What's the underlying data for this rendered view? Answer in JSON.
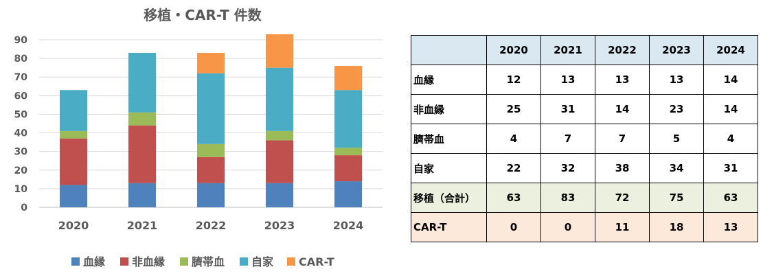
{
  "chart_data": {
    "type": "bar",
    "stacked": true,
    "title": "移植・CAR-T 件数",
    "categories": [
      "2020",
      "2021",
      "2022",
      "2023",
      "2024"
    ],
    "ylim": [
      0,
      90
    ],
    "yticks": [
      0,
      10,
      20,
      30,
      40,
      50,
      60,
      70,
      80,
      90
    ],
    "grid": true,
    "legend_position": "bottom",
    "series": [
      {
        "name": "血縁",
        "color": "#4f81bd",
        "values": [
          12,
          13,
          13,
          13,
          14
        ]
      },
      {
        "name": "非血縁",
        "color": "#c0504d",
        "values": [
          25,
          31,
          14,
          23,
          14
        ]
      },
      {
        "name": "臍帯血",
        "color": "#9bbb59",
        "values": [
          4,
          7,
          7,
          5,
          4
        ]
      },
      {
        "name": "自家",
        "color": "#4bacc6",
        "values": [
          22,
          32,
          38,
          34,
          31
        ]
      },
      {
        "name": "CAR-T",
        "color": "#f79646",
        "values": [
          0,
          0,
          11,
          18,
          13
        ]
      }
    ]
  },
  "table": {
    "headers": [
      "",
      "2020",
      "2021",
      "2022",
      "2023",
      "2024"
    ],
    "rows": [
      {
        "label": "血縁",
        "values": [
          "12",
          "13",
          "13",
          "13",
          "14"
        ]
      },
      {
        "label": "非血縁",
        "values": [
          "25",
          "31",
          "14",
          "23",
          "14"
        ]
      },
      {
        "label": "臍帯血",
        "values": [
          "4",
          "7",
          "7",
          "5",
          "4"
        ]
      },
      {
        "label": "自家",
        "values": [
          "22",
          "32",
          "38",
          "34",
          "31"
        ]
      },
      {
        "label": "移植（合計）",
        "values": [
          "63",
          "83",
          "72",
          "75",
          "63"
        ]
      },
      {
        "label": "CAR-T",
        "values": [
          "0",
          "0",
          "11",
          "18",
          "13"
        ]
      }
    ]
  }
}
